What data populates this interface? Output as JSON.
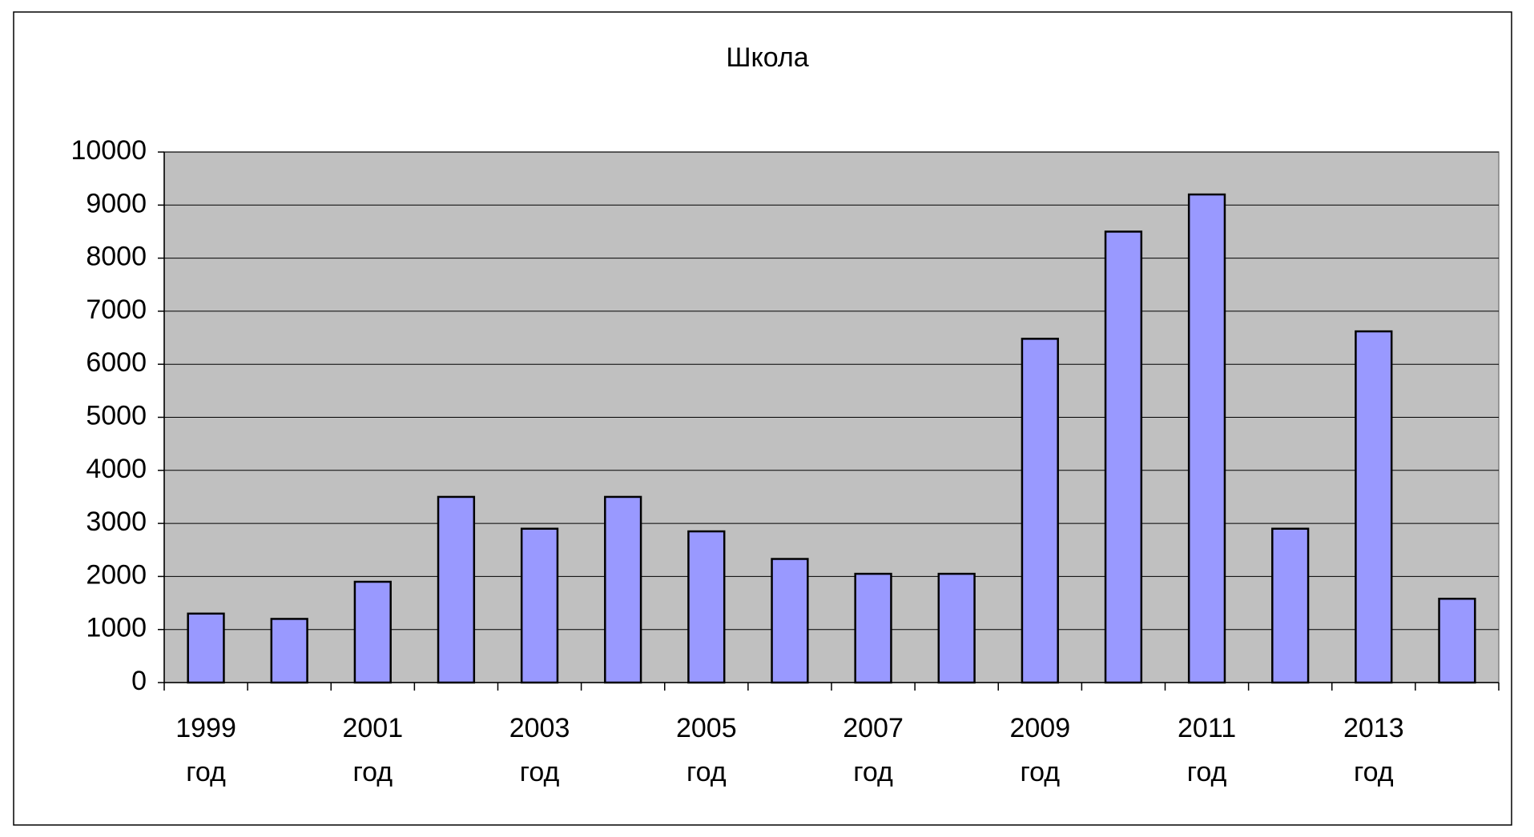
{
  "chart_data": {
    "type": "bar",
    "title": "Школа",
    "categories": [
      "1999 год",
      null,
      "2001 год",
      null,
      "2003 год",
      null,
      "2005 год",
      null,
      "2007 год",
      null,
      "2009 год",
      null,
      "2011 год",
      null,
      "2013 год",
      null
    ],
    "values": [
      1300,
      1200,
      1900,
      3500,
      2900,
      3500,
      2850,
      2330,
      2050,
      2050,
      6480,
      8500,
      9200,
      2900,
      6620,
      1580
    ],
    "color": "#9999ff",
    "ylim": [
      0,
      10000
    ],
    "yticks": [
      0,
      1000,
      2000,
      3000,
      4000,
      5000,
      6000,
      7000,
      8000,
      9000,
      10000
    ],
    "grid": true
  }
}
